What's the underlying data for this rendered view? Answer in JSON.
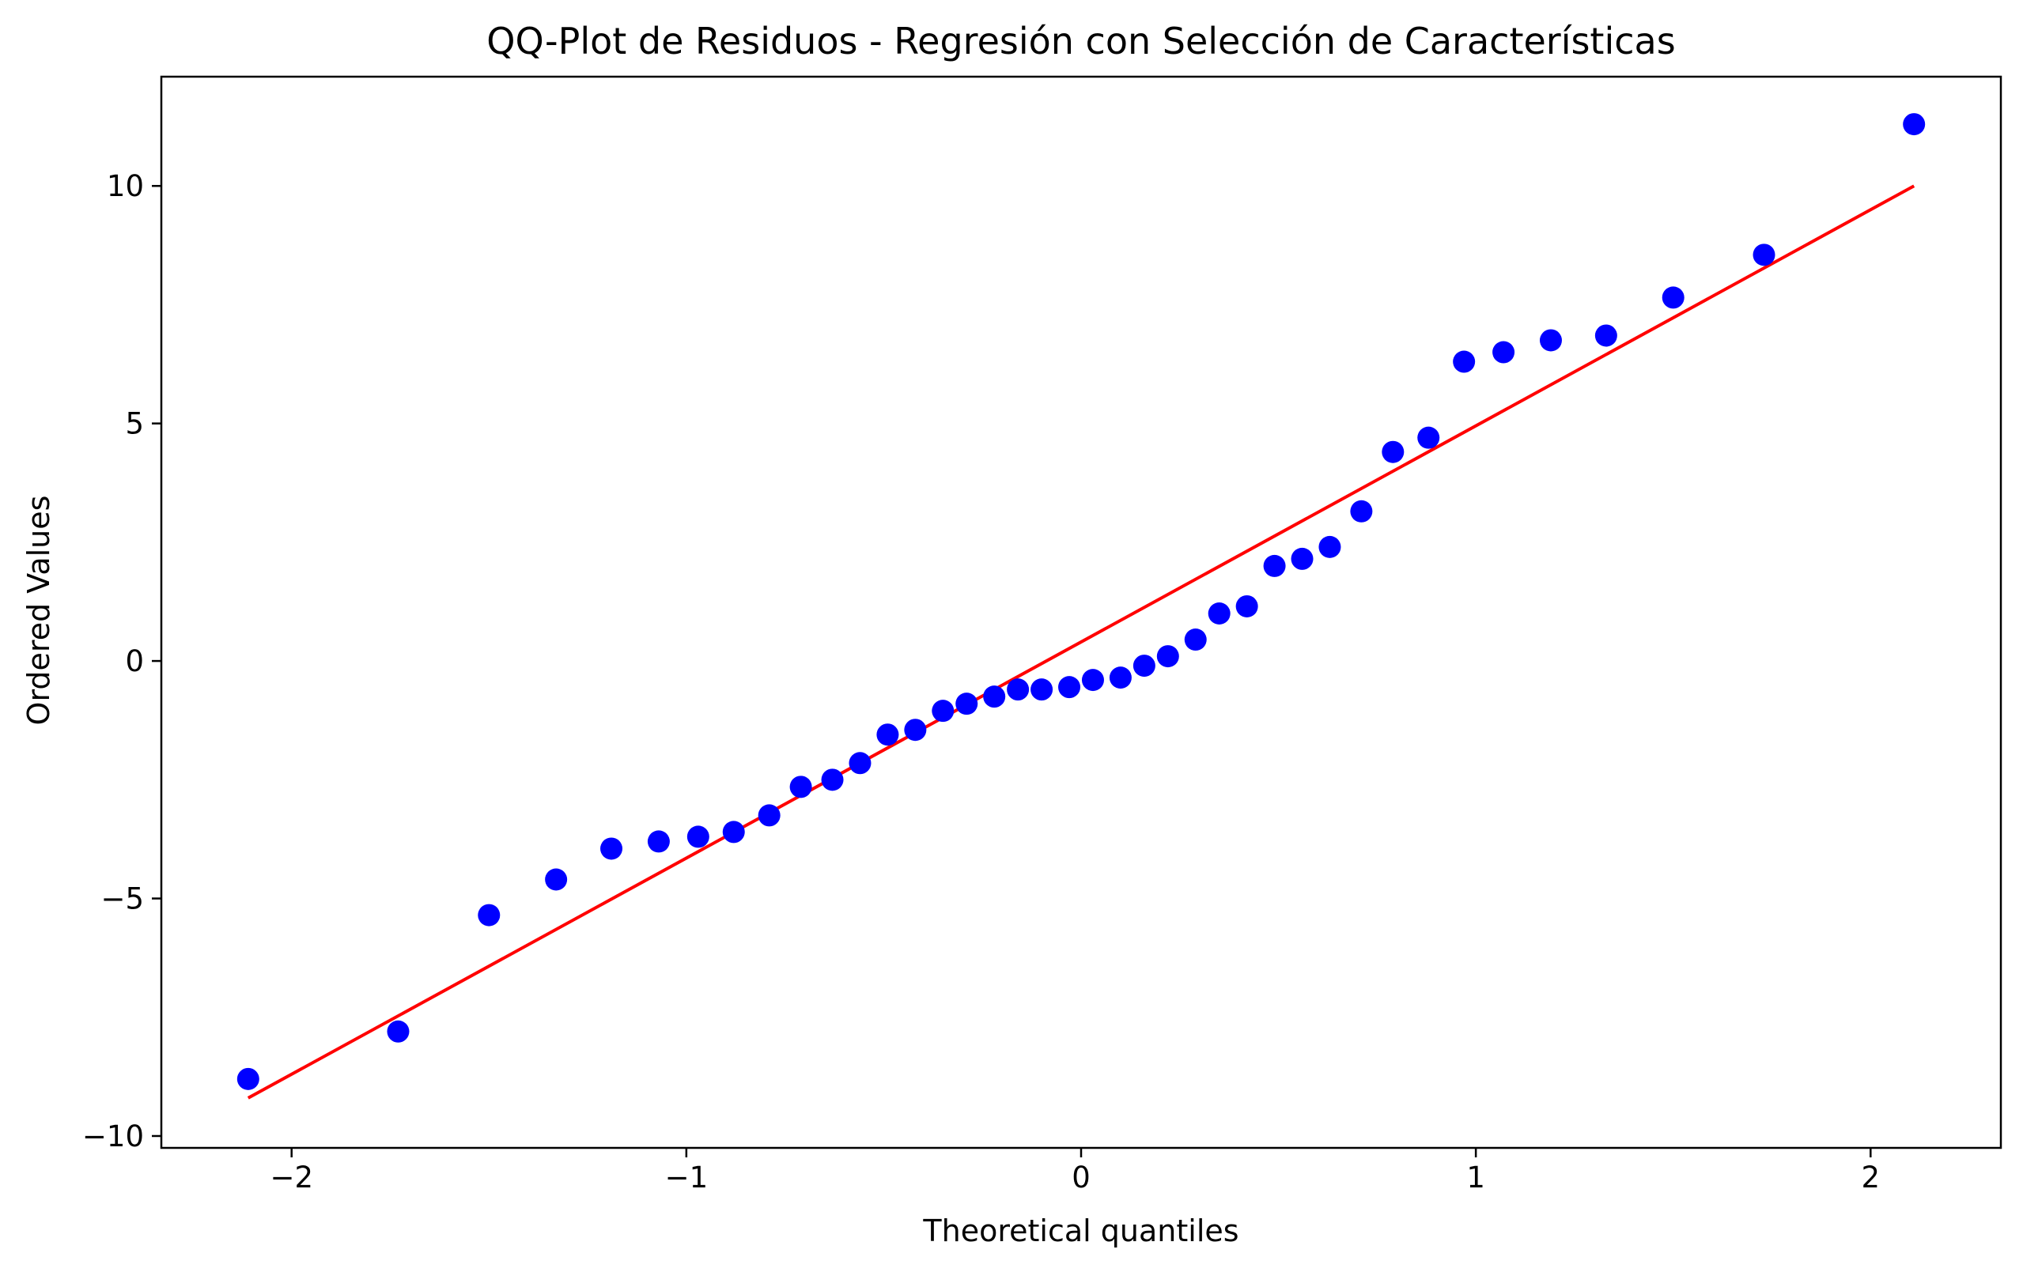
{
  "chart_data": {
    "type": "scatter",
    "title": "QQ-Plot de Residuos - Regresión con Selección de Características",
    "xlabel": "Theoretical quantiles",
    "ylabel": "Ordered Values",
    "xlim": [
      -2.33,
      2.33
    ],
    "ylim": [
      -10.25,
      12.3
    ],
    "x_ticks": [
      -2,
      -1,
      0,
      1,
      2
    ],
    "x_tick_labels": [
      "−2",
      "−1",
      "0",
      "1",
      "2"
    ],
    "y_ticks": [
      -10,
      -5,
      0,
      5,
      10
    ],
    "y_tick_labels": [
      "−10",
      "−5",
      "0",
      "5",
      "10"
    ],
    "grid": false,
    "legend": "none",
    "points": {
      "color": "#0000ff",
      "x": [
        -2.11,
        -1.73,
        -1.5,
        -1.33,
        -1.19,
        -1.07,
        -0.97,
        -0.88,
        -0.79,
        -0.71,
        -0.63,
        -0.56,
        -0.49,
        -0.42,
        -0.35,
        -0.29,
        -0.22,
        -0.16,
        -0.1,
        -0.03,
        0.03,
        0.1,
        0.16,
        0.22,
        0.29,
        0.35,
        0.42,
        0.49,
        0.56,
        0.63,
        0.71,
        0.79,
        0.88,
        0.97,
        1.07,
        1.19,
        1.33,
        1.5,
        1.73,
        2.11
      ],
      "y": [
        -8.8,
        -7.8,
        -5.35,
        -4.6,
        -3.95,
        -3.8,
        -3.7,
        -3.6,
        -3.25,
        -2.65,
        -2.5,
        -2.15,
        -1.55,
        -1.45,
        -1.05,
        -0.9,
        -0.75,
        -0.6,
        -0.6,
        -0.55,
        -0.4,
        -0.35,
        -0.1,
        0.1,
        0.45,
        1.0,
        1.15,
        2.0,
        2.15,
        2.4,
        3.15,
        4.4,
        4.7,
        6.3,
        6.5,
        6.75,
        6.85,
        7.65,
        8.55,
        11.3
      ]
    },
    "fit_line": {
      "color": "#ff0000",
      "x": [
        -2.11,
        2.11
      ],
      "y": [
        -9.2,
        10.0
      ]
    }
  }
}
